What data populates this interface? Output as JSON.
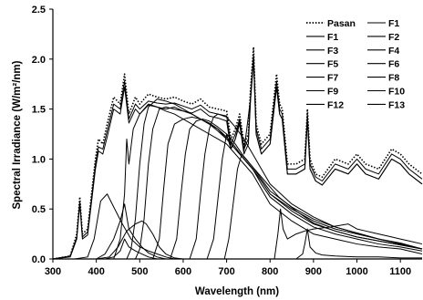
{
  "chart_data": {
    "type": "line",
    "xlabel": "Wavelength (nm)",
    "ylabel": "Spectral Irradiance (W/m²/nm)",
    "xlim": [
      300,
      1150
    ],
    "ylim": [
      0,
      2.5
    ],
    "xticks": [
      300,
      400,
      500,
      600,
      700,
      800,
      900,
      1000,
      1100
    ],
    "yticks": [
      0.0,
      0.5,
      1.0,
      1.5,
      2.0,
      2.5
    ],
    "ytick_labels": [
      "0.0",
      "0.5",
      "1.0",
      "1.5",
      "2.0",
      "2.5"
    ],
    "grid": false,
    "legend_position": "top-right",
    "legend": [
      "Pasan",
      "F1",
      "F1",
      "F2",
      "F3",
      "F4",
      "F5",
      "F6",
      "F7",
      "F8",
      "F9",
      "F10",
      "F12",
      "F13"
    ],
    "series": [
      {
        "name": "Pasan",
        "style": "dotted",
        "x": [
          300,
          340,
          355,
          362,
          368,
          380,
          398,
          405,
          415,
          425,
          440,
          455,
          465,
          475,
          490,
          500,
          520,
          540,
          560,
          580,
          600,
          620,
          640,
          660,
          680,
          700,
          710,
          720,
          730,
          740,
          750,
          755,
          762,
          768,
          780,
          800,
          815,
          822,
          828,
          840,
          860,
          880,
          886,
          892,
          905,
          920,
          950,
          980,
          1000,
          1020,
          1050,
          1080,
          1100,
          1120,
          1150
        ],
        "y": [
          0.0,
          0.03,
          0.25,
          0.62,
          0.25,
          0.3,
          1.0,
          1.2,
          1.15,
          1.35,
          1.62,
          1.55,
          1.85,
          1.45,
          1.62,
          1.55,
          1.65,
          1.62,
          1.6,
          1.62,
          1.58,
          1.55,
          1.6,
          1.52,
          1.5,
          1.48,
          1.2,
          1.3,
          1.45,
          1.15,
          1.25,
          1.7,
          2.12,
          1.35,
          1.15,
          1.25,
          1.85,
          1.55,
          1.5,
          0.95,
          0.95,
          1.0,
          1.5,
          1.0,
          0.85,
          0.82,
          1.0,
          0.95,
          1.05,
          0.95,
          0.9,
          1.1,
          1.05,
          0.95,
          0.85
        ]
      },
      {
        "name": "F1",
        "style": "solid",
        "x": [
          300,
          340,
          355,
          362,
          368,
          380,
          398,
          405,
          415,
          425,
          440,
          455,
          465,
          475,
          490,
          500,
          520,
          540,
          560,
          580,
          600,
          620,
          640,
          660,
          680,
          700,
          710,
          720,
          730,
          740,
          750,
          755,
          762,
          768,
          780,
          800,
          815,
          822,
          828,
          840,
          860,
          880,
          886,
          892,
          905,
          920,
          950,
          980,
          1000,
          1020,
          1050,
          1080,
          1100,
          1120,
          1150
        ],
        "y": [
          0.0,
          0.03,
          0.22,
          0.58,
          0.22,
          0.27,
          0.95,
          1.12,
          1.1,
          1.28,
          1.55,
          1.5,
          1.78,
          1.4,
          1.55,
          1.5,
          1.58,
          1.56,
          1.55,
          1.56,
          1.53,
          1.5,
          1.54,
          1.47,
          1.45,
          1.43,
          1.15,
          1.25,
          1.4,
          1.1,
          1.2,
          1.62,
          2.05,
          1.3,
          1.1,
          1.2,
          1.78,
          1.5,
          1.45,
          0.9,
          0.9,
          0.95,
          1.45,
          0.95,
          0.82,
          0.78,
          0.95,
          0.9,
          1.0,
          0.9,
          0.85,
          1.05,
          1.0,
          0.9,
          0.8
        ]
      },
      {
        "name": "F1",
        "style": "solid",
        "x": [
          300,
          340,
          355,
          362,
          368,
          380,
          398,
          405,
          415,
          425,
          440,
          455,
          465,
          475,
          490,
          500,
          520,
          540,
          560,
          580,
          600,
          620,
          640,
          660,
          680,
          700,
          710,
          720,
          730,
          740,
          750,
          755,
          762,
          768,
          780,
          800,
          815,
          822,
          828,
          840,
          860,
          880,
          886,
          892,
          905,
          920,
          950,
          980,
          1000,
          1020,
          1050,
          1080,
          1100,
          1120,
          1150
        ],
        "y": [
          0.0,
          0.02,
          0.2,
          0.55,
          0.2,
          0.24,
          0.9,
          1.08,
          1.05,
          1.22,
          1.5,
          1.45,
          1.72,
          1.36,
          1.5,
          1.45,
          1.54,
          1.52,
          1.5,
          1.52,
          1.48,
          1.46,
          1.5,
          1.43,
          1.41,
          1.38,
          1.1,
          1.2,
          1.35,
          1.05,
          1.15,
          1.58,
          2.0,
          1.25,
          1.05,
          1.15,
          1.72,
          1.45,
          1.4,
          0.85,
          0.85,
          0.9,
          1.4,
          0.9,
          0.78,
          0.74,
          0.9,
          0.85,
          0.95,
          0.85,
          0.8,
          1.0,
          0.95,
          0.85,
          0.75
        ]
      },
      {
        "name": "F2",
        "style": "solid",
        "x": [
          300,
          350,
          380,
          395,
          410,
          425,
          440,
          460,
          480,
          500,
          520,
          540,
          560,
          580,
          600,
          620,
          640,
          660,
          680,
          700,
          720,
          740,
          760,
          780,
          800,
          820,
          840,
          860,
          880,
          900,
          920,
          950,
          1000,
          1050,
          1100,
          1150
        ],
        "y": [
          0.0,
          0.0,
          0.02,
          0.2,
          0.58,
          0.65,
          0.52,
          0.35,
          0.2,
          0.12,
          0.08,
          0.05,
          0.02,
          0.0,
          0.0,
          0.0,
          0.0,
          0.0,
          0.0,
          0.0,
          0.0,
          0.0,
          0.0,
          0.0,
          0.0,
          0.0,
          0.0,
          0.0,
          0.0,
          0.0,
          0.0,
          0.0,
          0.0,
          0.0,
          0.0,
          0.0
        ]
      },
      {
        "name": "F3",
        "style": "solid",
        "x": [
          300,
          400,
          420,
          440,
          455,
          465,
          475,
          490,
          505,
          520,
          540,
          560,
          580,
          600,
          640,
          700,
          800,
          900,
          1000,
          1150
        ],
        "y": [
          0.0,
          0.0,
          0.05,
          0.2,
          0.38,
          0.55,
          0.3,
          0.2,
          0.12,
          0.06,
          0.02,
          0.0,
          0.0,
          0.0,
          0.0,
          0.0,
          0.0,
          0.0,
          0.0,
          0.0
        ]
      },
      {
        "name": "F4",
        "style": "solid",
        "x": [
          300,
          400,
          430,
          450,
          470,
          490,
          505,
          515,
          530,
          545,
          560,
          580,
          600,
          650,
          700,
          800,
          1000,
          1150
        ],
        "y": [
          0.0,
          0.0,
          0.02,
          0.12,
          0.28,
          0.35,
          0.38,
          0.35,
          0.25,
          0.12,
          0.05,
          0.01,
          0.0,
          0.0,
          0.0,
          0.0,
          0.0,
          0.0
        ]
      },
      {
        "name": "F5",
        "style": "solid",
        "x": [
          300,
          420,
          440,
          455,
          465,
          475,
          490,
          505,
          520,
          540,
          560,
          580,
          600,
          640,
          700,
          800,
          1000,
          1150
        ],
        "y": [
          0.0,
          0.0,
          0.02,
          0.08,
          0.2,
          0.12,
          0.08,
          0.05,
          0.02,
          0.0,
          0.0,
          0.0,
          0.0,
          0.0,
          0.0,
          0.0,
          0.0,
          0.0
        ]
      },
      {
        "name": "F6",
        "style": "solid",
        "x": [
          300,
          440,
          455,
          465,
          470,
          475,
          485,
          500,
          520,
          540,
          560,
          580,
          600,
          620,
          640,
          660,
          680,
          700,
          720,
          740,
          760,
          780,
          800,
          850,
          900,
          950,
          1000,
          1050,
          1100,
          1150
        ],
        "y": [
          0.0,
          0.0,
          0.2,
          0.65,
          1.2,
          0.95,
          1.3,
          1.45,
          1.55,
          1.52,
          1.48,
          1.45,
          1.4,
          1.35,
          1.3,
          1.25,
          1.2,
          1.15,
          1.05,
          0.95,
          0.85,
          0.7,
          0.55,
          0.38,
          0.25,
          0.2,
          0.15,
          0.12,
          0.1,
          0.05
        ]
      },
      {
        "name": "F7",
        "style": "solid",
        "x": [
          300,
          470,
          480,
          490,
          500,
          510,
          520,
          540,
          560,
          580,
          600,
          620,
          640,
          660,
          680,
          700,
          720,
          740,
          760,
          780,
          800,
          850,
          900,
          950,
          1000,
          1050,
          1100,
          1150
        ],
        "y": [
          0.0,
          0.0,
          0.1,
          0.4,
          0.95,
          1.35,
          1.52,
          1.6,
          1.58,
          1.55,
          1.5,
          1.45,
          1.4,
          1.35,
          1.3,
          1.2,
          1.1,
          1.0,
          0.9,
          0.75,
          0.62,
          0.45,
          0.32,
          0.25,
          0.2,
          0.15,
          0.12,
          0.08
        ]
      },
      {
        "name": "F8",
        "style": "solid",
        "x": [
          300,
          490,
          500,
          510,
          520,
          530,
          545,
          560,
          580,
          600,
          620,
          640,
          660,
          680,
          700,
          720,
          740,
          760,
          780,
          800,
          850,
          900,
          950,
          1000,
          1050,
          1100,
          1150
        ],
        "y": [
          0.0,
          0.0,
          0.1,
          0.4,
          0.95,
          1.3,
          1.5,
          1.52,
          1.5,
          1.48,
          1.45,
          1.4,
          1.35,
          1.28,
          1.2,
          1.1,
          1.0,
          0.9,
          0.78,
          0.65,
          0.48,
          0.35,
          0.28,
          0.22,
          0.18,
          0.14,
          0.1
        ]
      },
      {
        "name": "F9",
        "style": "solid",
        "x": [
          300,
          530,
          545,
          555,
          565,
          580,
          600,
          620,
          640,
          660,
          680,
          700,
          720,
          740,
          760,
          780,
          800,
          850,
          900,
          950,
          1000,
          1050,
          1100,
          1150
        ],
        "y": [
          0.0,
          0.0,
          0.2,
          0.7,
          1.15,
          1.35,
          1.4,
          1.42,
          1.4,
          1.36,
          1.3,
          1.22,
          1.12,
          1.0,
          0.9,
          0.78,
          0.65,
          0.5,
          0.38,
          0.3,
          0.25,
          0.2,
          0.15,
          0.1
        ]
      },
      {
        "name": "F10",
        "style": "solid",
        "x": [
          300,
          570,
          585,
          595,
          605,
          615,
          630,
          645,
          660,
          680,
          700,
          720,
          740,
          760,
          780,
          800,
          850,
          900,
          950,
          1000,
          1050,
          1100,
          1150
        ],
        "y": [
          0.0,
          0.0,
          0.2,
          0.65,
          1.05,
          1.3,
          1.38,
          1.4,
          1.38,
          1.32,
          1.25,
          1.15,
          1.02,
          0.92,
          0.8,
          0.68,
          0.52,
          0.4,
          0.32,
          0.26,
          0.2,
          0.16,
          0.1
        ]
      },
      {
        "name": "F12",
        "style": "solid",
        "x": [
          300,
          615,
          630,
          640,
          650,
          660,
          670,
          680,
          700,
          720,
          740,
          760,
          780,
          800,
          850,
          900,
          950,
          1000,
          1050,
          1100,
          1150
        ],
        "y": [
          0.0,
          0.0,
          0.2,
          0.65,
          1.05,
          1.3,
          1.42,
          1.45,
          1.42,
          1.32,
          1.2,
          1.05,
          0.9,
          0.75,
          0.55,
          0.42,
          0.32,
          0.26,
          0.2,
          0.15,
          0.1
        ]
      },
      {
        "name": "F13",
        "style": "solid",
        "x": [
          300,
          655,
          670,
          680,
          690,
          700,
          710,
          720,
          730,
          740,
          755,
          762,
          768,
          780,
          800,
          815,
          822,
          828,
          840,
          860,
          880,
          886,
          892,
          905,
          920,
          950,
          980,
          1000,
          1020,
          1050,
          1080,
          1100,
          1120,
          1150
        ],
        "y": [
          0.0,
          0.0,
          0.2,
          0.6,
          1.0,
          1.25,
          1.1,
          1.2,
          1.38,
          1.08,
          1.6,
          2.0,
          1.25,
          1.05,
          1.15,
          1.72,
          1.45,
          1.4,
          0.85,
          0.85,
          0.9,
          1.4,
          0.9,
          0.78,
          0.74,
          0.9,
          0.85,
          0.95,
          0.85,
          0.8,
          1.0,
          0.95,
          0.85,
          0.75
        ]
      },
      {
        "name": "",
        "style": "solid",
        "x": [
          300,
          695,
          705,
          715,
          725,
          735,
          745,
          760,
          780,
          800,
          820,
          840,
          860,
          880,
          900,
          950,
          1000,
          1050,
          1100,
          1150
        ],
        "y": [
          0.0,
          0.0,
          0.2,
          0.55,
          0.9,
          1.05,
          1.0,
          0.92,
          0.82,
          0.72,
          0.62,
          0.55,
          0.48,
          0.42,
          0.36,
          0.28,
          0.22,
          0.18,
          0.14,
          0.1
        ]
      },
      {
        "name": "",
        "style": "solid",
        "x": [
          300,
          810,
          818,
          824,
          830,
          840,
          860,
          880,
          900,
          940,
          980,
          1000,
          1020,
          1050,
          1080,
          1100,
          1120,
          1150
        ],
        "y": [
          0.0,
          0.0,
          0.25,
          0.5,
          0.3,
          0.2,
          0.25,
          0.28,
          0.3,
          0.32,
          0.35,
          0.3,
          0.28,
          0.25,
          0.22,
          0.2,
          0.18,
          0.15
        ]
      },
      {
        "name": "",
        "style": "solid",
        "x": [
          300,
          860,
          875,
          880,
          886,
          892,
          905,
          920,
          950,
          1000,
          1050,
          1100,
          1150
        ],
        "y": [
          0.0,
          0.0,
          0.05,
          0.15,
          0.3,
          0.12,
          0.06,
          0.04,
          0.03,
          0.02,
          0.02,
          0.01,
          0.01
        ]
      }
    ]
  }
}
